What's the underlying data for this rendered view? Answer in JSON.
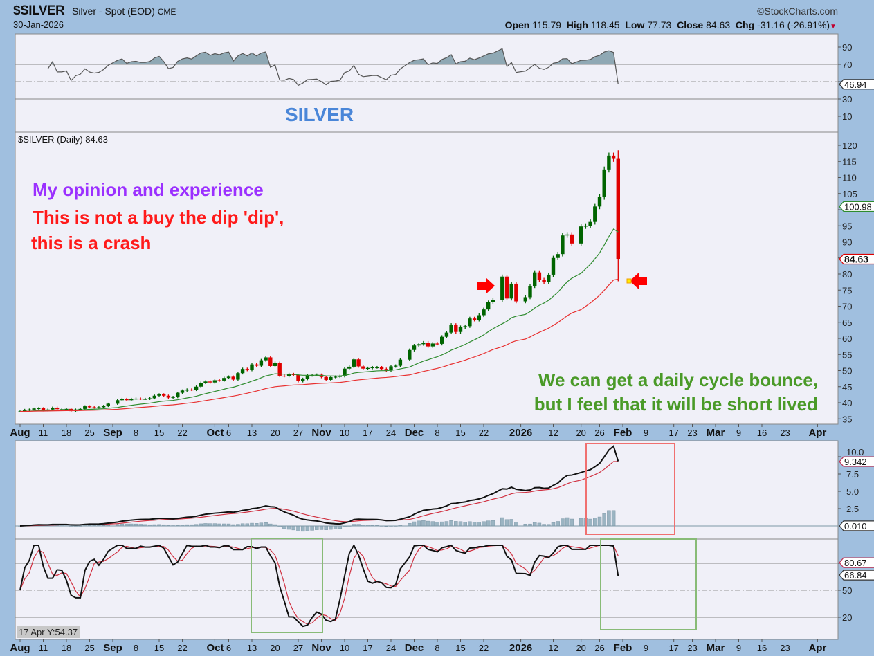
{
  "header": {
    "symbol": "$SILVER",
    "name": "Silver - Spot (EOD)",
    "exchange": "CME",
    "date": "30-Jan-2026",
    "copyright": "©StockCharts.com",
    "open_label": "Open",
    "open": "115.79",
    "high_label": "High",
    "high": "118.45",
    "low_label": "Low",
    "low": "77.73",
    "close_label": "Close",
    "close": "84.63",
    "chg_label": "Chg",
    "chg": "-31.16 (-26.91%)"
  },
  "price_legend": "$SILVER (Daily) 84.63",
  "rsi_panel": {
    "title_overlay": "SILVER",
    "value_label": "46.94",
    "ticks": [
      10,
      30,
      50,
      70,
      90
    ],
    "tick_labels": [
      "10",
      "30",
      "",
      "70",
      "90"
    ]
  },
  "annotations": {
    "line1": "My opinion and experience",
    "line2": "This is not a buy the dip 'dip',",
    "line3": "this is a  crash",
    "line4": "We can get a daily cycle bounce,",
    "line5": "but I feel that it will be short lived"
  },
  "colors": {
    "up": "#006400",
    "down": "#e00000",
    "ma_short": "#2e8b2e",
    "ma_long": "#e83030",
    "annotation_purple": "#9b30ff",
    "annotation_red": "#ff1a1a",
    "annotation_green": "#4a9a28",
    "silver_title": "#4a86d8",
    "box_red": "#f07070",
    "box_green": "#88bb77"
  },
  "price_value_labels": {
    "ma": "100.98",
    "close": "84.63"
  },
  "macd_panel": {
    "value_labels": [
      "9.342",
      "0.010"
    ],
    "ticks": [
      "2.5",
      "5.0",
      "7.5",
      "10.0"
    ]
  },
  "stoch_panel": {
    "value_labels": [
      "80.67",
      "66.84"
    ],
    "ticks": [
      "20",
      "50",
      "80"
    ]
  },
  "tooltip": "17 Apr Y:54.37",
  "chart_data": {
    "type": "candlestick",
    "symbol": "$SILVER",
    "ylim": [
      35,
      120
    ],
    "yticks": [
      35,
      40,
      45,
      50,
      55,
      60,
      65,
      70,
      75,
      80,
      85,
      90,
      95,
      100,
      105,
      110,
      115,
      120
    ],
    "last_bar": {
      "date": "2026-01-30",
      "open": 115.79,
      "high": 118.45,
      "low": 77.73,
      "close": 84.63
    },
    "x_tick_labels": [
      [
        "2025-08-04",
        "Aug",
        true
      ],
      [
        "2025-08-11",
        "11",
        false
      ],
      [
        "2025-08-18",
        "18",
        false
      ],
      [
        "2025-08-25",
        "25",
        false
      ],
      [
        "2025-09-01",
        "Sep",
        true
      ],
      [
        "2025-09-08",
        "8",
        false
      ],
      [
        "2025-09-15",
        "15",
        false
      ],
      [
        "2025-09-22",
        "22",
        false
      ],
      [
        "2025-10-01",
        "Oct",
        true
      ],
      [
        "2025-10-06",
        "6",
        false
      ],
      [
        "2025-10-13",
        "13",
        false
      ],
      [
        "2025-10-20",
        "20",
        false
      ],
      [
        "2025-10-27",
        "27",
        false
      ],
      [
        "2025-11-03",
        "Nov",
        true
      ],
      [
        "2025-11-10",
        "10",
        false
      ],
      [
        "2025-11-17",
        "17",
        false
      ],
      [
        "2025-11-24",
        "24",
        false
      ],
      [
        "2025-12-01",
        "Dec",
        true
      ],
      [
        "2025-12-08",
        "8",
        false
      ],
      [
        "2025-12-15",
        "15",
        false
      ],
      [
        "2025-12-22",
        "22",
        false
      ],
      [
        "2026-01-01",
        "2026",
        true
      ],
      [
        "2026-01-12",
        "12",
        false
      ],
      [
        "2026-01-20",
        "20",
        false
      ],
      [
        "2026-01-26",
        "26",
        false
      ],
      [
        "2026-02-02",
        "Feb",
        true
      ],
      [
        "2026-02-09",
        "9",
        false
      ],
      [
        "2026-02-17",
        "17",
        false
      ],
      [
        "2026-02-23",
        "23",
        false
      ],
      [
        "2026-03-02",
        "Mar",
        true
      ],
      [
        "2026-03-09",
        "9",
        false
      ],
      [
        "2026-03-16",
        "16",
        false
      ],
      [
        "2026-03-23",
        "23",
        false
      ],
      [
        "2026-04-01",
        "Apr",
        true
      ]
    ],
    "closes": [
      [
        "2025-08-04",
        37.3
      ],
      [
        "2025-08-05",
        37.8
      ],
      [
        "2025-08-06",
        37.9
      ],
      [
        "2025-08-07",
        38.2
      ],
      [
        "2025-08-08",
        38.3
      ],
      [
        "2025-08-11",
        37.6
      ],
      [
        "2025-08-12",
        37.9
      ],
      [
        "2025-08-13",
        38.5
      ],
      [
        "2025-08-14",
        38.0
      ],
      [
        "2025-08-15",
        38.0
      ],
      [
        "2025-08-18",
        38.1
      ],
      [
        "2025-08-19",
        37.4
      ],
      [
        "2025-08-20",
        37.9
      ],
      [
        "2025-08-21",
        38.1
      ],
      [
        "2025-08-22",
        38.9
      ],
      [
        "2025-08-25",
        38.6
      ],
      [
        "2025-08-26",
        38.5
      ],
      [
        "2025-08-27",
        38.6
      ],
      [
        "2025-08-28",
        39.0
      ],
      [
        "2025-08-29",
        39.7
      ],
      [
        "2025-09-02",
        40.8
      ],
      [
        "2025-09-03",
        41.2
      ],
      [
        "2025-09-04",
        40.8
      ],
      [
        "2025-09-05",
        41.2
      ],
      [
        "2025-09-08",
        41.3
      ],
      [
        "2025-09-09",
        41.2
      ],
      [
        "2025-09-10",
        41.2
      ],
      [
        "2025-09-11",
        41.4
      ],
      [
        "2025-09-12",
        42.2
      ],
      [
        "2025-09-15",
        42.6
      ],
      [
        "2025-09-16",
        42.2
      ],
      [
        "2025-09-17",
        41.6
      ],
      [
        "2025-09-18",
        41.8
      ],
      [
        "2025-09-19",
        43.1
      ],
      [
        "2025-09-22",
        43.8
      ],
      [
        "2025-09-23",
        44.1
      ],
      [
        "2025-09-24",
        44.0
      ],
      [
        "2025-09-25",
        45.0
      ],
      [
        "2025-09-26",
        46.2
      ],
      [
        "2025-09-29",
        46.6
      ],
      [
        "2025-09-30",
        46.3
      ],
      [
        "2025-10-01",
        47.0
      ],
      [
        "2025-10-02",
        46.9
      ],
      [
        "2025-10-03",
        47.7
      ],
      [
        "2025-10-06",
        48.1
      ],
      [
        "2025-10-07",
        47.2
      ],
      [
        "2025-10-08",
        49.2
      ],
      [
        "2025-10-09",
        50.5
      ],
      [
        "2025-10-10",
        50.2
      ],
      [
        "2025-10-13",
        51.9
      ],
      [
        "2025-10-14",
        51.5
      ],
      [
        "2025-10-15",
        53.2
      ],
      [
        "2025-10-16",
        54.1
      ],
      [
        "2025-10-17",
        51.4
      ],
      [
        "2025-10-20",
        52.4
      ],
      [
        "2025-10-21",
        48.4
      ],
      [
        "2025-10-22",
        48.3
      ],
      [
        "2025-10-23",
        48.9
      ],
      [
        "2025-10-24",
        48.6
      ],
      [
        "2025-10-27",
        46.7
      ],
      [
        "2025-10-28",
        47.4
      ],
      [
        "2025-10-29",
        48.5
      ],
      [
        "2025-10-30",
        48.6
      ],
      [
        "2025-10-31",
        48.7
      ],
      [
        "2025-11-03",
        48.0
      ],
      [
        "2025-11-04",
        47.1
      ],
      [
        "2025-11-05",
        48.0
      ],
      [
        "2025-11-06",
        48.1
      ],
      [
        "2025-11-07",
        48.3
      ],
      [
        "2025-11-10",
        50.6
      ],
      [
        "2025-11-11",
        51.2
      ],
      [
        "2025-11-12",
        53.5
      ],
      [
        "2025-11-13",
        51.3
      ],
      [
        "2025-11-14",
        50.6
      ],
      [
        "2025-11-17",
        50.8
      ],
      [
        "2025-11-18",
        51.0
      ],
      [
        "2025-11-19",
        51.0
      ],
      [
        "2025-11-20",
        50.5
      ],
      [
        "2025-11-21",
        50.0
      ],
      [
        "2025-11-24",
        51.3
      ],
      [
        "2025-11-25",
        51.5
      ],
      [
        "2025-11-26",
        53.4
      ],
      [
        "2025-11-28",
        56.4
      ],
      [
        "2025-12-01",
        57.8
      ],
      [
        "2025-12-02",
        58.2
      ],
      [
        "2025-12-03",
        58.7
      ],
      [
        "2025-12-04",
        57.5
      ],
      [
        "2025-12-05",
        58.4
      ],
      [
        "2025-12-08",
        58.3
      ],
      [
        "2025-12-09",
        60.5
      ],
      [
        "2025-12-10",
        61.8
      ],
      [
        "2025-12-11",
        64.2
      ],
      [
        "2025-12-12",
        62.0
      ],
      [
        "2025-12-15",
        63.5
      ],
      [
        "2025-12-16",
        63.8
      ],
      [
        "2025-12-17",
        66.2
      ],
      [
        "2025-12-18",
        65.8
      ],
      [
        "2025-12-19",
        67.2
      ],
      [
        "2025-12-22",
        69.0
      ],
      [
        "2025-12-23",
        71.2
      ],
      [
        "2025-12-24",
        72.0
      ],
      [
        "2025-12-26",
        79.2
      ],
      [
        "2025-12-29",
        72.4
      ],
      [
        "2025-12-30",
        77.0
      ],
      [
        "2025-12-31",
        71.5
      ],
      [
        "2026-01-02",
        72.8
      ],
      [
        "2026-01-05",
        76.3
      ],
      [
        "2026-01-06",
        80.5
      ],
      [
        "2026-01-07",
        78.2
      ],
      [
        "2026-01-08",
        77.5
      ],
      [
        "2026-01-09",
        79.8
      ],
      [
        "2026-01-12",
        85.0
      ],
      [
        "2026-01-13",
        86.2
      ],
      [
        "2026-01-14",
        92.0
      ],
      [
        "2026-01-15",
        92.3
      ],
      [
        "2026-01-16",
        89.5
      ],
      [
        "2026-01-20",
        94.8
      ],
      [
        "2026-01-21",
        95.0
      ],
      [
        "2026-01-22",
        96.2
      ],
      [
        "2026-01-23",
        101.0
      ],
      [
        "2026-01-26",
        104.0
      ],
      [
        "2026-01-27",
        112.5
      ],
      [
        "2026-01-28",
        116.8
      ],
      [
        "2026-01-29",
        115.8
      ],
      [
        "2026-01-30",
        84.63
      ]
    ],
    "overlays": [
      "EMA short (green)",
      "EMA long (red)"
    ],
    "indicators": [
      "RSI",
      "MACD",
      "Stochastic"
    ]
  }
}
